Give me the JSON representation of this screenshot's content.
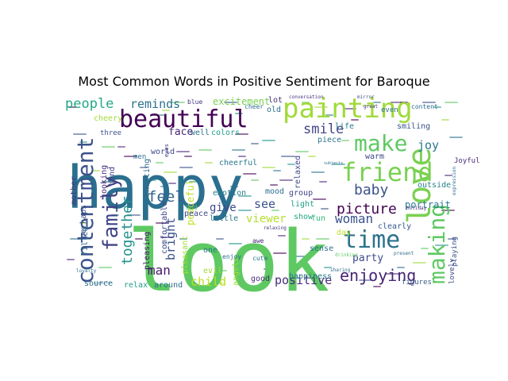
{
  "chart_data": {
    "type": "wordcloud",
    "title": "Most Common Words in Positive Sentiment for Baroque",
    "background": "#ffffff",
    "colormap": "viridis",
    "words": [
      {
        "text": "happy",
        "color": "#2a6f8f"
      },
      {
        "text": "look",
        "color": "#5ec962"
      },
      {
        "text": "painting",
        "color": "#a0da39"
      },
      {
        "text": "beautiful",
        "color": "#440154"
      },
      {
        "text": "contentment",
        "color": "#3b528b"
      },
      {
        "text": "love",
        "color": "#7ad151"
      },
      {
        "text": "friend",
        "color": "#7ad151"
      },
      {
        "text": "family",
        "color": "#414487"
      },
      {
        "text": "make",
        "color": "#5ec962"
      },
      {
        "text": "making",
        "color": "#5ec962"
      },
      {
        "text": "time",
        "color": "#2c728e"
      },
      {
        "text": "together",
        "color": "#21918c"
      },
      {
        "text": "enjoying",
        "color": "#482475"
      },
      {
        "text": "people",
        "color": "#22a884"
      },
      {
        "text": "picture",
        "color": "#440154"
      },
      {
        "text": "woman",
        "color": "#3b528b"
      },
      {
        "text": "baby",
        "color": "#3b528b"
      },
      {
        "text": "smile",
        "color": "#414487"
      },
      {
        "text": "feel",
        "color": "#33638d"
      },
      {
        "text": "joy",
        "color": "#2a788e"
      },
      {
        "text": "reminds",
        "color": "#2c728e"
      },
      {
        "text": "bright",
        "color": "#3b528b"
      },
      {
        "text": "positive",
        "color": "#472d7b"
      },
      {
        "text": "child",
        "color": "#bddf26"
      },
      {
        "text": "man",
        "color": "#481a6c"
      },
      {
        "text": "see",
        "color": "#3b528b"
      },
      {
        "text": "viewer",
        "color": "#b5de2b"
      },
      {
        "text": "party",
        "color": "#3e4989"
      },
      {
        "text": "give",
        "color": "#3e4989"
      },
      {
        "text": "excitement",
        "color": "#7ad151"
      },
      {
        "text": "portrait",
        "color": "#2a788e"
      },
      {
        "text": "peaceful",
        "color": "#bddf26"
      },
      {
        "text": "face",
        "color": "#482878"
      },
      {
        "text": "smiling",
        "color": "#3b528b"
      },
      {
        "text": "life",
        "color": "#287c8e"
      },
      {
        "text": "colors",
        "color": "#1f9e89"
      },
      {
        "text": "lot",
        "color": "#46337e"
      },
      {
        "text": "happiness",
        "color": "#2a788e"
      },
      {
        "text": "mood",
        "color": "#2e6e8e"
      },
      {
        "text": "emotion",
        "color": "#277f8e"
      },
      {
        "text": "show",
        "color": "#22a884"
      },
      {
        "text": "outside",
        "color": "#26828e"
      },
      {
        "text": "clearly",
        "color": "#38598c"
      },
      {
        "text": "warm",
        "color": "#3e4989"
      },
      {
        "text": "light",
        "color": "#1fa187"
      },
      {
        "text": "fun",
        "color": "#35b779"
      },
      {
        "text": "group",
        "color": "#414487"
      },
      {
        "text": "relaxed",
        "color": "#3e4989"
      },
      {
        "text": "cheerful",
        "color": "#2a788e"
      },
      {
        "text": "exciting",
        "color": "#31688e"
      },
      {
        "text": "pleasing",
        "color": "#48186a"
      },
      {
        "text": "pleasant",
        "color": "#a0da39"
      },
      {
        "text": "comfortable",
        "color": "#3e4989"
      },
      {
        "text": "good",
        "color": "#472d7b"
      },
      {
        "text": "little",
        "color": "#2a788e"
      },
      {
        "text": "peace",
        "color": "#3f4788"
      },
      {
        "text": "piece",
        "color": "#2c728e"
      },
      {
        "text": "looking",
        "color": "#472d7b"
      },
      {
        "text": "filled",
        "color": "#2c728e"
      },
      {
        "text": "mother",
        "color": "#46327e"
      },
      {
        "text": "perhaps",
        "color": "#3b528b"
      },
      {
        "text": "world",
        "color": "#3e4989"
      },
      {
        "text": "hand",
        "color": "#414487"
      },
      {
        "text": "three",
        "color": "#3b528b"
      },
      {
        "text": "cheery",
        "color": "#a0da39"
      },
      {
        "text": "well",
        "color": "#2c728e"
      },
      {
        "text": "old",
        "color": "#2e6e8e"
      },
      {
        "text": "sense",
        "color": "#2e6e8e"
      },
      {
        "text": "day",
        "color": "#bddf26"
      },
      {
        "text": "angels",
        "color": "#a0da39"
      },
      {
        "text": "one",
        "color": "#2a788e"
      },
      {
        "text": "evil",
        "color": "#a0da39"
      },
      {
        "text": "relax",
        "color": "#1f9e89"
      },
      {
        "text": "around",
        "color": "#2e6e8e"
      },
      {
        "text": "source",
        "color": "#2e6e8e"
      },
      {
        "text": "lovely",
        "color": "#3e4989"
      },
      {
        "text": "playing",
        "color": "#3b528b"
      },
      {
        "text": "Joyful",
        "color": "#472d7b"
      },
      {
        "text": "figures",
        "color": "#38598c"
      },
      {
        "text": "awe",
        "color": "#482878"
      },
      {
        "text": "cute",
        "color": "#2c728e"
      },
      {
        "text": "enjoy",
        "color": "#2e6e8e"
      },
      {
        "text": "God",
        "color": "#5ec962"
      },
      {
        "text": "men",
        "color": "#2c728e"
      },
      {
        "text": "even",
        "color": "#2e6e8e"
      },
      {
        "text": "content",
        "color": "#2e6e8e"
      },
      {
        "text": "blue",
        "color": "#46337e"
      },
      {
        "text": "cheer",
        "color": "#2e6e8e"
      },
      {
        "text": "holiday",
        "color": "#46337e"
      },
      {
        "text": "sharing",
        "color": "#2e6e8e"
      },
      {
        "text": "present",
        "color": "#2e6e8e"
      },
      {
        "text": "drinking",
        "color": "#5ec962"
      },
      {
        "text": "eyes",
        "color": "#46337e"
      },
      {
        "text": "conversation",
        "color": "#46337e"
      },
      {
        "text": "mirror",
        "color": "#3b528b"
      },
      {
        "text": "relaxing",
        "color": "#46337e"
      },
      {
        "text": "loyalty",
        "color": "#2e6e8e"
      },
      {
        "text": "signify",
        "color": "#2e6e8e"
      },
      {
        "text": "expression",
        "color": "#2e6e8e"
      },
      {
        "text": "great",
        "color": "#46337e"
      },
      {
        "text": "subjects",
        "color": "#2e6e8e"
      }
    ]
  }
}
